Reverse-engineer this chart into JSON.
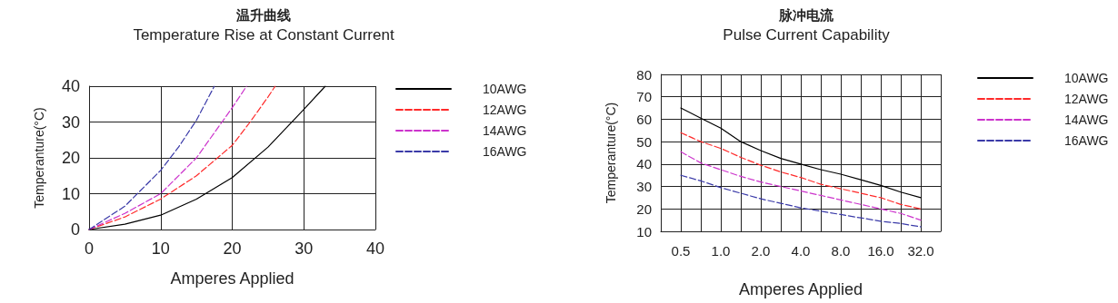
{
  "chart_data": [
    {
      "type": "line",
      "title": "温升曲线",
      "subtitle": "Temperature Rise at Constant Current",
      "xlabel": "Amperes Applied",
      "ylabel": "Temperanture(°C)",
      "xlim": [
        0,
        40
      ],
      "xticks": [
        0,
        10,
        20,
        30,
        40
      ],
      "ylim": [
        0,
        40
      ],
      "yticks": [
        0,
        10,
        20,
        30,
        40
      ],
      "grid": true,
      "legend": "top right",
      "marker": "none",
      "series": [
        {
          "name": "10AWG",
          "color": "#000000",
          "line_style": "solid",
          "x": [
            0,
            5,
            10,
            15,
            20,
            25,
            30,
            33
          ],
          "values": [
            0,
            1.5,
            4,
            8.5,
            14.5,
            23,
            33.5,
            40
          ]
        },
        {
          "name": "12AWG",
          "color": "#ff2a2a",
          "line_style": "dashed",
          "x": [
            0,
            5,
            10,
            15,
            20,
            22.5,
            25,
            26
          ],
          "values": [
            0,
            3.5,
            8.5,
            15,
            23.5,
            30,
            37,
            40
          ]
        },
        {
          "name": "14AWG",
          "color": "#cc33cc",
          "line_style": "dashed",
          "x": [
            0,
            5,
            10,
            15,
            17.5,
            20,
            22
          ],
          "values": [
            0,
            4.5,
            10,
            20,
            27,
            34,
            40
          ]
        },
        {
          "name": "16AWG",
          "color": "#3a3aa8",
          "line_style": "dashed",
          "x": [
            0,
            5,
            10,
            12.5,
            15,
            17.5
          ],
          "values": [
            0,
            6.5,
            16.5,
            23,
            30.5,
            40
          ]
        }
      ]
    },
    {
      "type": "line",
      "title": "脉冲电流",
      "subtitle": "Pulse Current Capability",
      "xlabel": "Amperes Applied",
      "ylabel": "Temperanture(°C)",
      "categories": [
        null,
        "0.5",
        null,
        "1.0",
        null,
        "2.0",
        null,
        "4.0",
        null,
        "8.0",
        null,
        "16.0",
        null,
        "32.0",
        null
      ],
      "ylim": [
        10,
        80
      ],
      "yticks": [
        10,
        20,
        30,
        40,
        50,
        60,
        70,
        80
      ],
      "grid": true,
      "legend": "top right",
      "marker": "none",
      "series": [
        {
          "name": "10AWG",
          "color": "#000000",
          "line_style": "solid",
          "values": [
            null,
            65,
            60.5,
            56,
            50,
            46,
            42.5,
            40,
            37.5,
            35.5,
            33,
            30.5,
            27.5,
            25,
            null
          ]
        },
        {
          "name": "12AWG",
          "color": "#ff2a2a",
          "line_style": "dashed",
          "values": [
            null,
            54,
            50,
            47,
            43,
            39.5,
            36.5,
            34,
            31,
            29,
            27,
            25,
            22,
            20,
            null
          ]
        },
        {
          "name": "14AWG",
          "color": "#cc33cc",
          "line_style": "dashed",
          "values": [
            null,
            45.5,
            40.5,
            37.5,
            34.5,
            32,
            30,
            28,
            26,
            24,
            22,
            20,
            18,
            15,
            null
          ]
        },
        {
          "name": "16AWG",
          "color": "#3a3aa8",
          "line_style": "dashed",
          "values": [
            null,
            35,
            32.5,
            29.5,
            27,
            24.5,
            22.5,
            20.5,
            19,
            17.5,
            16,
            14.5,
            13.5,
            12,
            null
          ]
        }
      ]
    }
  ]
}
